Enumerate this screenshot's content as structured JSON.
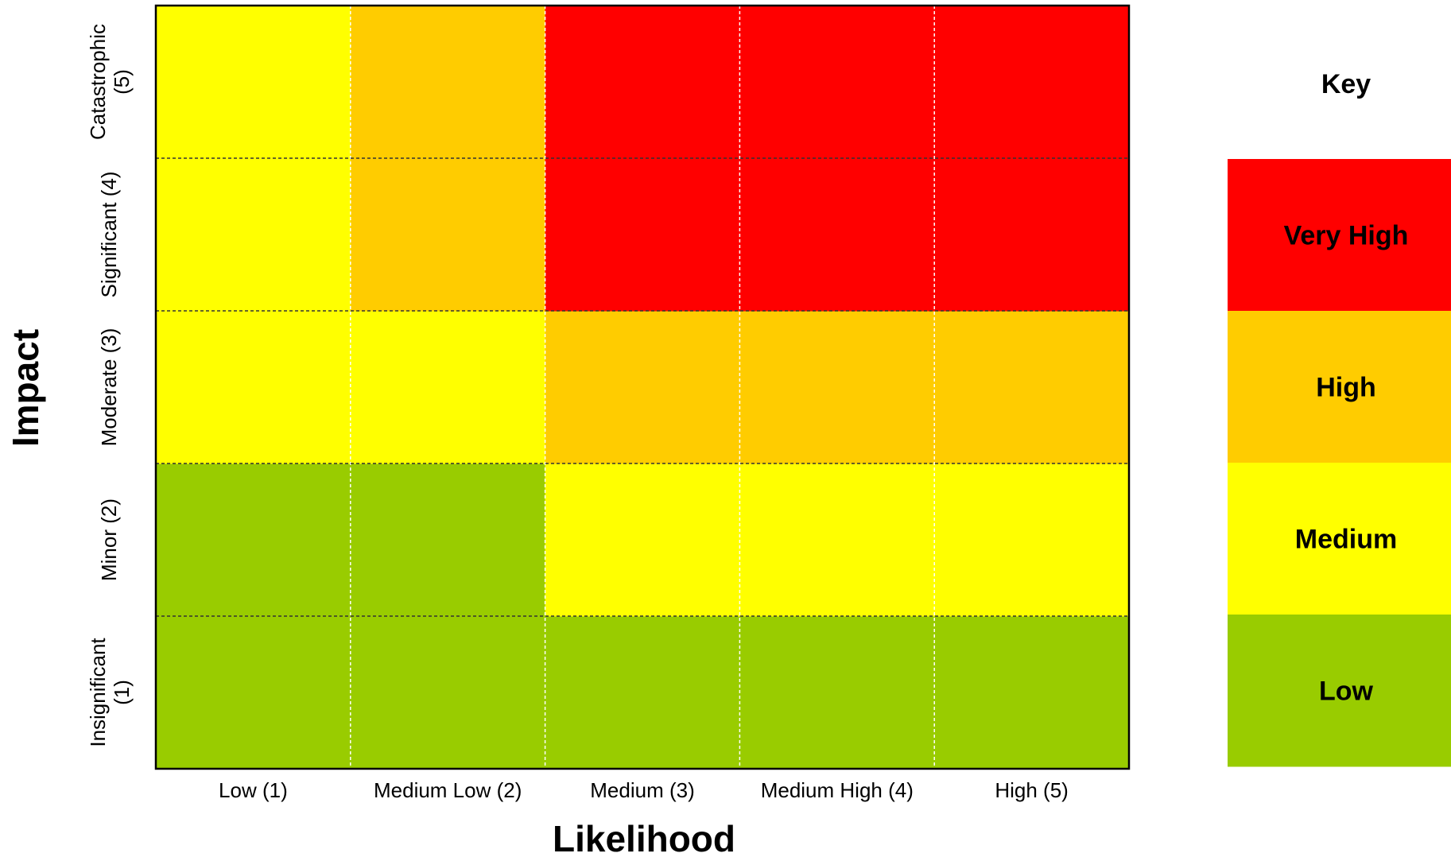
{
  "chart_data": {
    "type": "heatmap",
    "xlabel": "Likelihood",
    "ylabel": "Impact",
    "x_categories": [
      "Low (1)",
      "Medium Low (2)",
      "Medium (3)",
      "Medium High (4)",
      "High (5)"
    ],
    "y_categories": [
      "Insignificant (1)",
      "Minor (2)",
      "Moderate (3)",
      "Significant (4)",
      "Catastrophic (5)"
    ],
    "y_tick_lines": [
      [
        "Insignificant",
        "(1)"
      ],
      [
        "Minor (2)"
      ],
      [
        "Moderate (3)"
      ],
      [
        "Significant (4)"
      ],
      [
        "Catastrophic",
        "(5)"
      ]
    ],
    "rating_grid": [
      [
        "Low",
        "Low",
        "Low",
        "Low",
        "Low"
      ],
      [
        "Low",
        "Low",
        "Medium",
        "Medium",
        "Medium"
      ],
      [
        "Medium",
        "Medium",
        "High",
        "High",
        "High"
      ],
      [
        "Medium",
        "High",
        "Very High",
        "Very High",
        "Very High"
      ],
      [
        "Medium",
        "High",
        "Very High",
        "Very High",
        "Very High"
      ]
    ],
    "levels": [
      {
        "name": "Very High",
        "color": "#ff0000"
      },
      {
        "name": "High",
        "color": "#ffcc00"
      },
      {
        "name": "Medium",
        "color": "#ffff00"
      },
      {
        "name": "Low",
        "color": "#99cc00"
      }
    ],
    "legend_title": "Key",
    "legend_placement": "right",
    "grid": true
  }
}
